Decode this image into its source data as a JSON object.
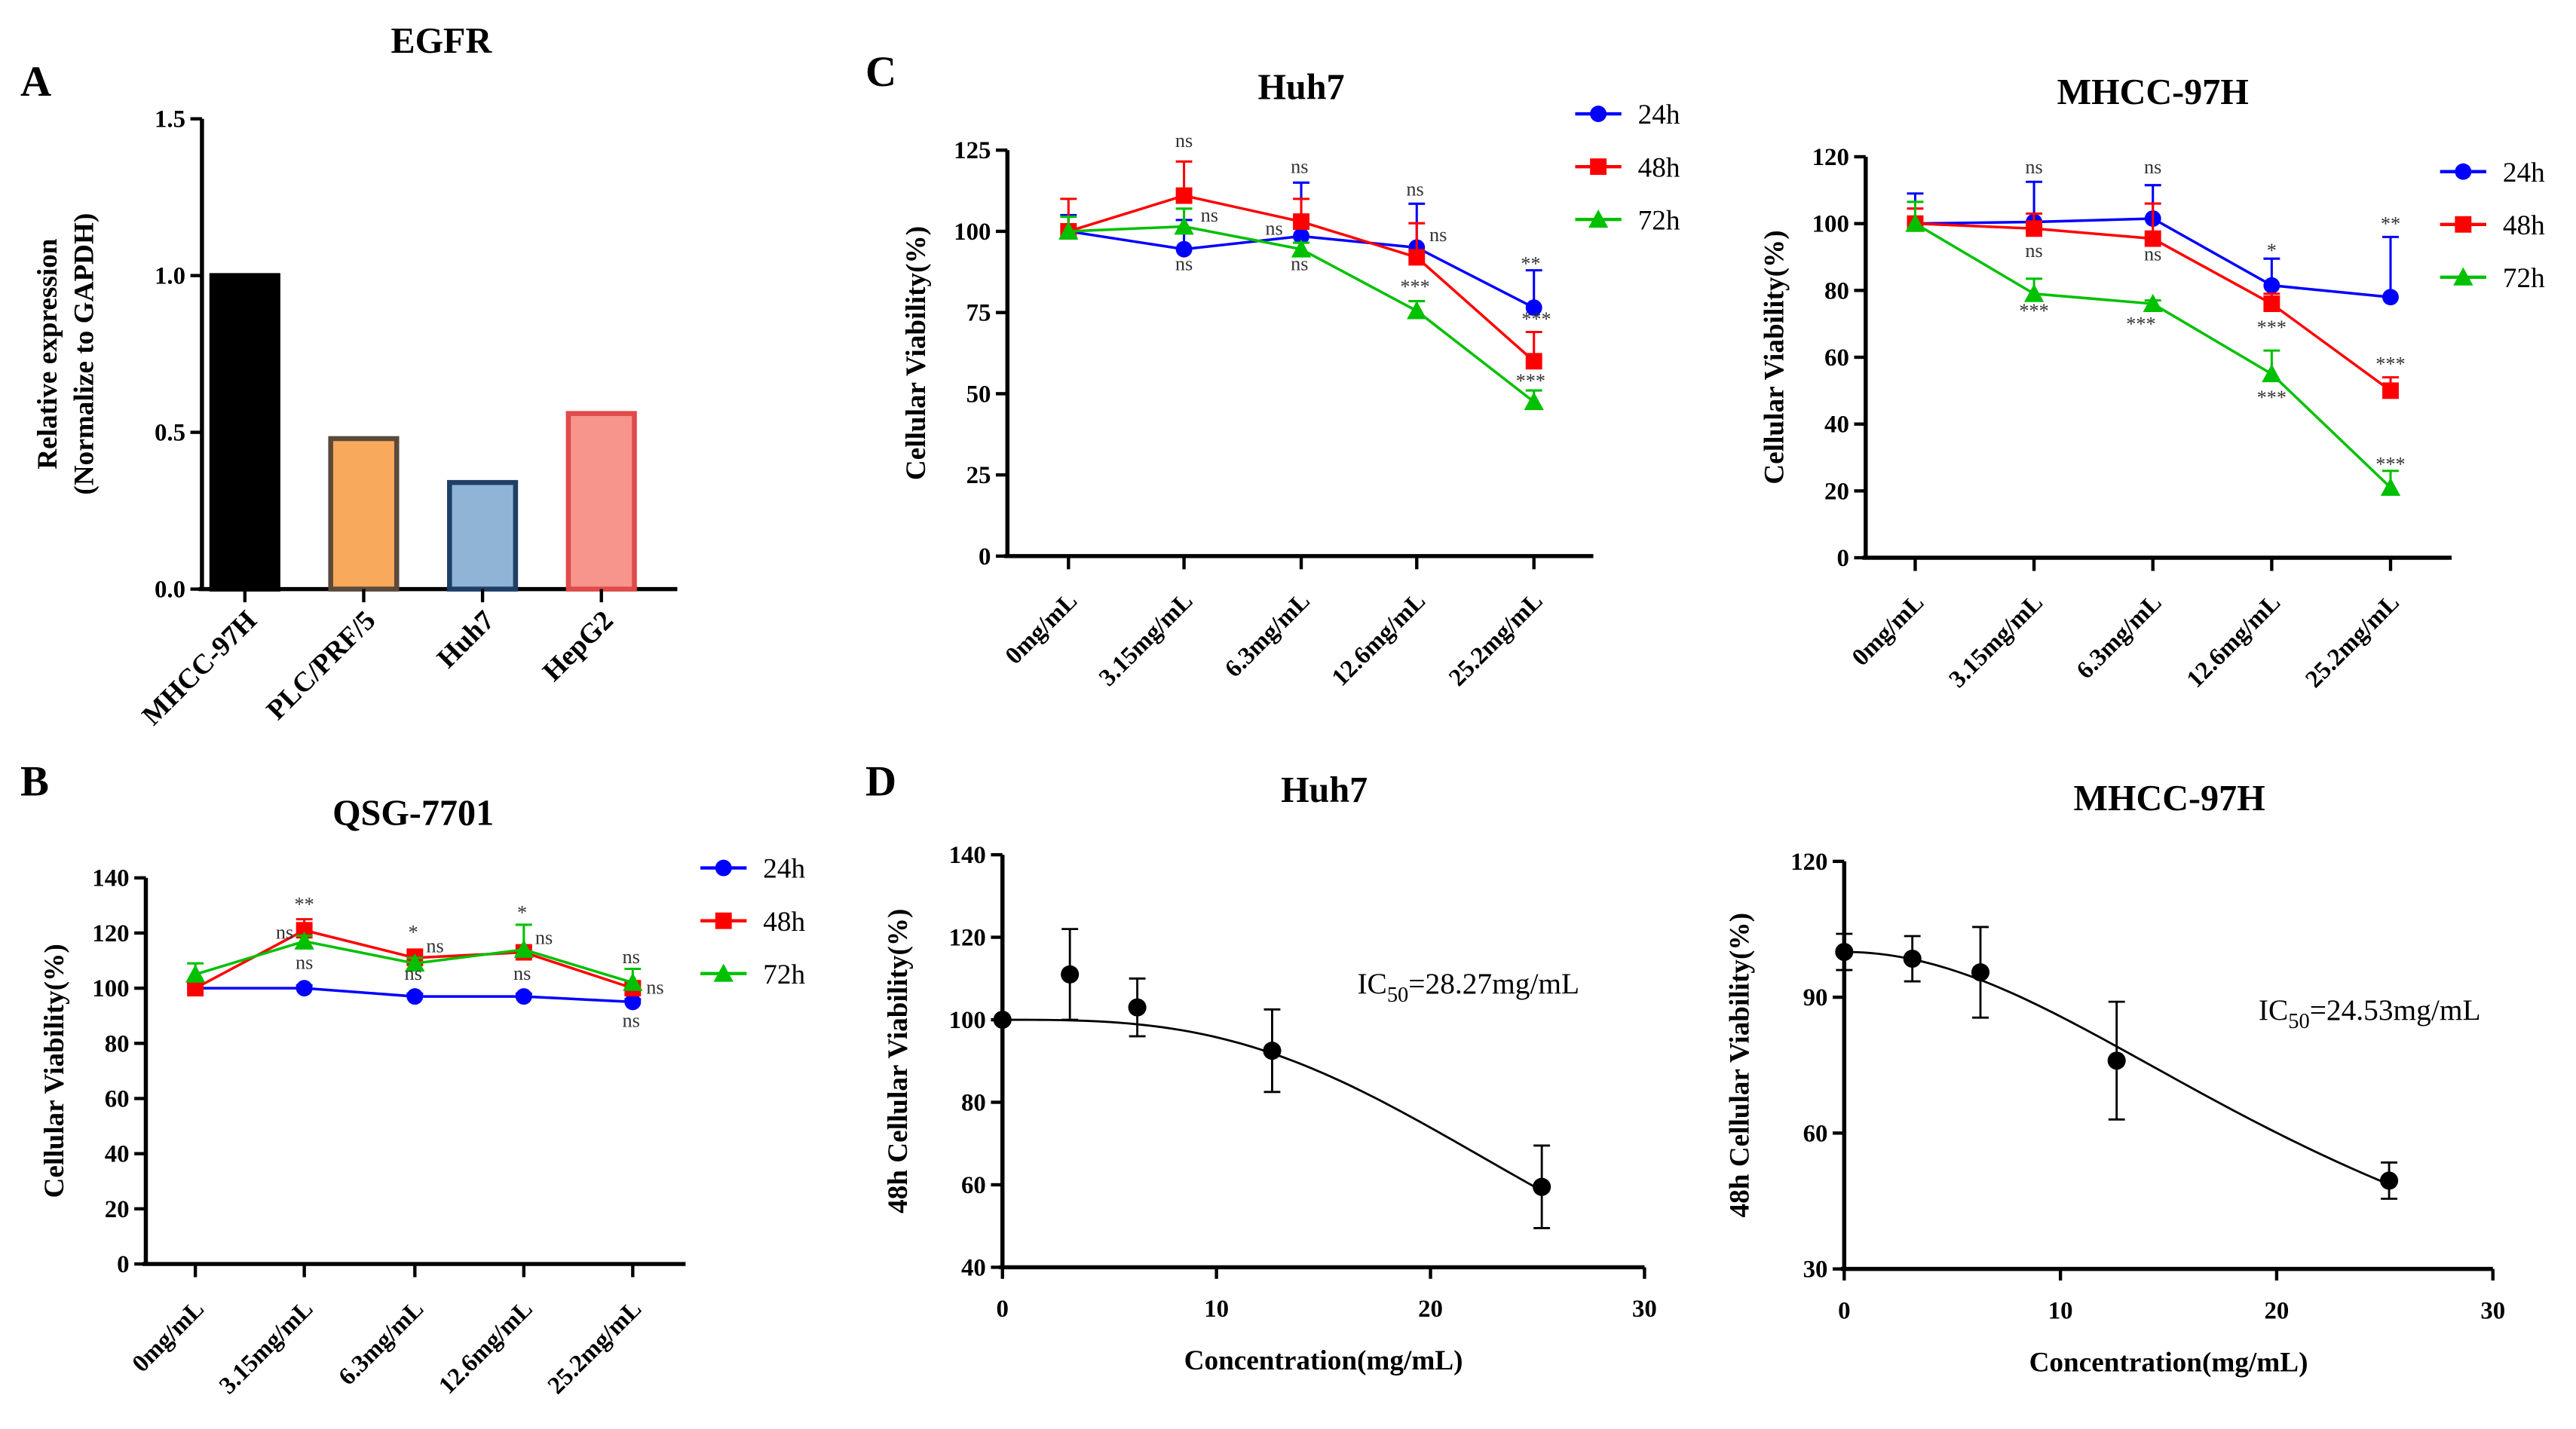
{
  "panel_labels": [
    "A",
    "B",
    "C",
    "D"
  ],
  "chart_data": [
    {
      "id": "A",
      "type": "bar",
      "title": "EGFR",
      "ylabel": "Relative expression",
      "ylabel2": "(Normalize to GAPDH)",
      "ylim": [
        0,
        1.5
      ],
      "yticks": [
        "0.0",
        "0.5",
        "1.0",
        "1.5"
      ],
      "categories": [
        "MHCC-97H",
        "PLC/PRF/5",
        "Huh7",
        "HepG2"
      ],
      "values": [
        1.0,
        0.48,
        0.34,
        0.56
      ],
      "colors": [
        "#000000",
        "#f9a95c",
        "#8fb4d6",
        "#f7948c"
      ],
      "edge_colors": [
        "#000000",
        "#5a4a3a",
        "#1f3f66",
        "#e04a4a"
      ]
    },
    {
      "id": "B",
      "type": "line",
      "title": "QSG-7701",
      "ylabel": "Cellular Viability(%)",
      "ylim": [
        0,
        140
      ],
      "yticks": [
        "0",
        "20",
        "40",
        "60",
        "80",
        "100",
        "120",
        "140"
      ],
      "categories": [
        "0mg/mL",
        "3.15mg/mL",
        "6.3mg/mL",
        "12.6mg/mL",
        "25.2mg/mL"
      ],
      "series": [
        {
          "name": "24h",
          "color": "#0000ff",
          "marker": "circle",
          "values": [
            100,
            100,
            97,
            97,
            95
          ],
          "err": [
            2,
            1,
            1,
            1,
            1
          ]
        },
        {
          "name": "48h",
          "color": "#ff0000",
          "marker": "square",
          "values": [
            100,
            121,
            111,
            113,
            100
          ],
          "err": [
            2,
            4,
            3,
            2,
            2
          ]
        },
        {
          "name": "72h",
          "color": "#00c000",
          "marker": "triangle",
          "values": [
            105,
            117,
            109,
            114,
            102
          ],
          "err": [
            4,
            2,
            2,
            9,
            5
          ]
        }
      ],
      "annotations": [
        {
          "x": 1,
          "y": 128,
          "text": "**"
        },
        {
          "x": 0.82,
          "y": 118,
          "text": "ns"
        },
        {
          "x": 1,
          "y": 107,
          "text": "ns"
        },
        {
          "x": 2,
          "y": 118,
          "text": "*"
        },
        {
          "x": 2.2,
          "y": 113,
          "text": "ns"
        },
        {
          "x": 2,
          "y": 103,
          "text": "ns"
        },
        {
          "x": 3,
          "y": 125,
          "text": "*"
        },
        {
          "x": 3.2,
          "y": 116,
          "text": "ns"
        },
        {
          "x": 3,
          "y": 103,
          "text": "ns"
        },
        {
          "x": 4,
          "y": 109,
          "text": "ns"
        },
        {
          "x": 4.22,
          "y": 98,
          "text": "ns"
        },
        {
          "x": 4,
          "y": 86,
          "text": "ns"
        }
      ]
    },
    {
      "id": "C1",
      "type": "line",
      "title": "Huh7",
      "ylabel": "Cellular Viability(%)",
      "ylim": [
        0,
        125
      ],
      "yticks": [
        "0",
        "25",
        "50",
        "75",
        "100",
        "125"
      ],
      "categories": [
        "0mg/mL",
        "3.15mg/mL",
        "6.3mg/mL",
        "12.6mg/mL",
        "25.2mg/mL"
      ],
      "series": [
        {
          "name": "24h",
          "color": "#0000ff",
          "marker": "circle",
          "values": [
            100,
            94.5,
            98.5,
            95,
            76.5
          ],
          "err": [
            5,
            9,
            16.5,
            13.5,
            11.5
          ]
        },
        {
          "name": "48h",
          "color": "#ff0000",
          "marker": "square",
          "values": [
            100,
            111,
            103,
            92,
            60
          ],
          "err": [
            10,
            10.5,
            7,
            10.5,
            9
          ]
        },
        {
          "name": "72h",
          "color": "#00c000",
          "marker": "triangle",
          "values": [
            100,
            101.5,
            94.5,
            75.5,
            47.5
          ],
          "err": [
            4.5,
            5.5,
            2,
            3,
            3.5
          ]
        }
      ],
      "annotations": [
        {
          "x": 1,
          "y": 126,
          "text": "ns"
        },
        {
          "x": 1.22,
          "y": 103,
          "text": "ns"
        },
        {
          "x": 1,
          "y": 88,
          "text": "ns"
        },
        {
          "x": 2,
          "y": 118,
          "text": "ns"
        },
        {
          "x": 1.78,
          "y": 99,
          "text": "ns"
        },
        {
          "x": 2,
          "y": 88,
          "text": "ns"
        },
        {
          "x": 3,
          "y": 111,
          "text": "ns"
        },
        {
          "x": 3.2,
          "y": 97,
          "text": "ns"
        },
        {
          "x": 3,
          "y": 81,
          "text": "***"
        },
        {
          "x": 4,
          "y": 88,
          "text": "**"
        },
        {
          "x": 4.05,
          "y": 71,
          "text": "***"
        },
        {
          "x": 4,
          "y": 52,
          "text": "***"
        }
      ]
    },
    {
      "id": "C2",
      "type": "line",
      "title": "MHCC-97H",
      "ylabel": "Cellular Viability(%)",
      "ylim": [
        0,
        120
      ],
      "yticks": [
        "0",
        "20",
        "40",
        "60",
        "80",
        "100",
        "120"
      ],
      "categories": [
        "0mg/mL",
        "3.15mg/mL",
        "6.3mg/mL",
        "12.6mg/mL",
        "25.2mg/mL"
      ],
      "series": [
        {
          "name": "24h",
          "color": "#0000ff",
          "marker": "circle",
          "values": [
            100,
            100.5,
            101.5,
            81.5,
            78
          ],
          "err": [
            9,
            12,
            10,
            8,
            18
          ]
        },
        {
          "name": "48h",
          "color": "#ff0000",
          "marker": "square",
          "values": [
            100,
            98.5,
            95.5,
            76,
            50
          ],
          "err": [
            4.5,
            4.5,
            10.5,
            3,
            4
          ]
        },
        {
          "name": "72h",
          "color": "#00c000",
          "marker": "triangle",
          "values": [
            100,
            79,
            76,
            55,
            21
          ],
          "err": [
            6.5,
            4.5,
            1,
            7,
            5
          ]
        }
      ],
      "annotations": [
        {
          "x": 1,
          "y": 115,
          "text": "ns"
        },
        {
          "x": 1,
          "y": 90,
          "text": "ns"
        },
        {
          "x": 2,
          "y": 115,
          "text": "ns"
        },
        {
          "x": 2,
          "y": 89,
          "text": "ns"
        },
        {
          "x": 1,
          "y": 72,
          "text": "***"
        },
        {
          "x": 1.9,
          "y": 68,
          "text": "***"
        },
        {
          "x": 3,
          "y": 90,
          "text": "*"
        },
        {
          "x": 3,
          "y": 67,
          "text": "***"
        },
        {
          "x": 3,
          "y": 46,
          "text": "***"
        },
        {
          "x": 4,
          "y": 98,
          "text": "**"
        },
        {
          "x": 4,
          "y": 56,
          "text": "***"
        },
        {
          "x": 4,
          "y": 26,
          "text": "***"
        }
      ]
    },
    {
      "id": "D1",
      "type": "scatter",
      "title": "Huh7",
      "xlabel": "Concentration(mg/mL)",
      "ylabel": "48h Cellular Viability(%)",
      "xlim": [
        0,
        30
      ],
      "ylim": [
        40,
        140
      ],
      "xticks": [
        "0",
        "10",
        "20",
        "30"
      ],
      "yticks": [
        "40",
        "60",
        "80",
        "100",
        "120",
        "140"
      ],
      "x": [
        0,
        3.15,
        6.3,
        12.6,
        25.2
      ],
      "y": [
        100,
        111,
        103,
        92.5,
        59.5
      ],
      "err": [
        0,
        11,
        7,
        10,
        10
      ],
      "fit": {
        "top": 100,
        "bottom": 0,
        "ic50": 28.27,
        "hill": 3
      },
      "ic50_prefix": "IC",
      "ic50_sub": "50",
      "ic50_value": "=28.27mg/mL"
    },
    {
      "id": "D2",
      "type": "scatter",
      "title": "MHCC-97H",
      "xlabel": "Concentration(mg/mL)",
      "ylabel": "48h Cellular Viability(%)",
      "xlim": [
        0,
        30
      ],
      "ylim": [
        30,
        120
      ],
      "xticks": [
        "0",
        "10",
        "20",
        "30"
      ],
      "yticks": [
        "30",
        "60",
        "90",
        "120"
      ],
      "x": [
        0,
        3.15,
        6.3,
        12.6,
        25.2
      ],
      "y": [
        100,
        98.5,
        95.5,
        76,
        49.5
      ],
      "err": [
        4,
        5,
        10,
        13,
        4
      ],
      "fit": {
        "top": 100,
        "bottom": 0,
        "ic50": 24.53,
        "hill": 2
      },
      "ic50_prefix": "IC",
      "ic50_sub": "50",
      "ic50_value": "=24.53mg/mL"
    }
  ]
}
